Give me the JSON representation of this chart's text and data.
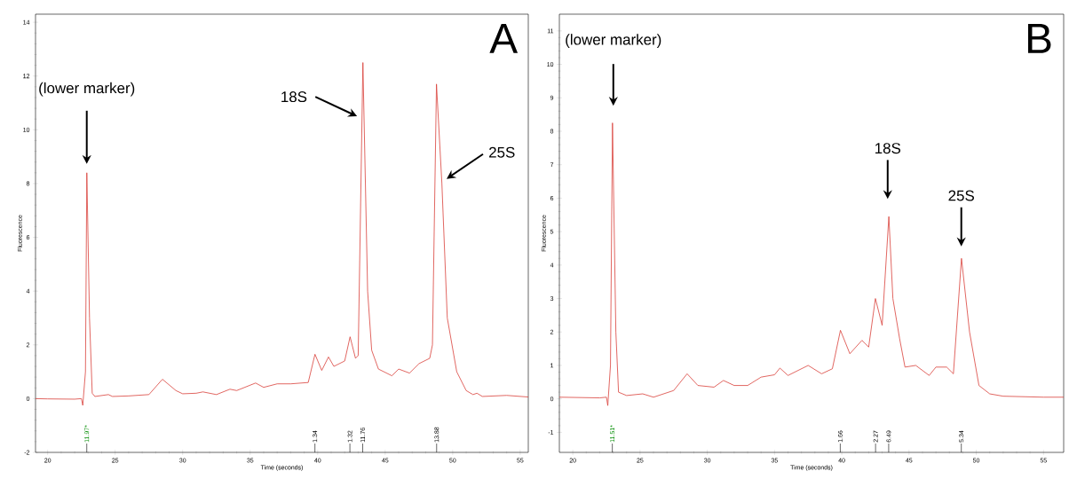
{
  "chart_data": [
    {
      "type": "line",
      "title": "A",
      "xlabel": "Time (seconds)",
      "ylabel": "Fluorescence",
      "color": "#d9403a",
      "x": [
        19.1,
        20,
        22,
        22.5,
        22.6,
        22.8,
        22.9,
        23.1,
        23.3,
        23.5,
        24.5,
        24.8,
        26,
        27.5,
        28.5,
        29.5,
        30,
        31,
        31.5,
        32.5,
        33.5,
        34,
        35.4,
        36,
        37,
        38,
        39.3,
        39.8,
        40.3,
        40.8,
        41.2,
        42,
        42.4,
        42.8,
        43.0,
        43.35,
        43.7,
        44.0,
        44.5,
        45.5,
        46,
        46.8,
        47.5,
        48.3,
        48.5,
        48.8,
        49.2,
        49.6,
        50.3,
        51,
        51.5,
        51.8,
        52.2,
        54,
        55.6
      ],
      "values": [
        0,
        -0.01,
        -0.02,
        0,
        -0.25,
        1.0,
        8.4,
        3.0,
        0.2,
        0.08,
        0.15,
        0.08,
        0.1,
        0.15,
        0.72,
        0.3,
        0.18,
        0.2,
        0.25,
        0.15,
        0.35,
        0.3,
        0.58,
        0.42,
        0.55,
        0.55,
        0.6,
        1.65,
        1.05,
        1.55,
        1.2,
        1.4,
        2.3,
        1.5,
        1.6,
        12.5,
        4,
        1.8,
        1.1,
        0.85,
        1.1,
        0.95,
        1.3,
        1.5,
        2,
        11.7,
        8,
        3,
        1.0,
        0.3,
        0.15,
        0.2,
        0.08,
        0.12,
        0.06
      ],
      "xlim": [
        19.1,
        55.6
      ],
      "ylim": [
        -2,
        14.3
      ],
      "xticks": [
        20,
        25,
        30,
        35,
        40,
        45,
        50,
        55
      ],
      "yticks": [
        -2,
        0,
        2,
        4,
        6,
        8,
        10,
        12,
        14
      ],
      "annotations": [
        "(lower marker)",
        "18S",
        "25S",
        "11.97*",
        "1.34",
        "1.32",
        "11.76",
        "13.88"
      ]
    },
    {
      "type": "line",
      "title": "B",
      "xlabel": "Time (seconds)",
      "ylabel": "Fluorescence",
      "color": "#d9403a",
      "x": [
        19,
        22,
        22.5,
        22.6,
        22.8,
        22.95,
        23.2,
        23.4,
        24,
        25.2,
        26,
        27.5,
        28.5,
        29.3,
        30.5,
        31.2,
        32,
        33,
        34,
        35,
        35.4,
        36,
        37.5,
        38.5,
        39.3,
        39.9,
        40.6,
        41.5,
        42,
        42.5,
        43.0,
        43.5,
        43.8,
        44.3,
        44.7,
        45.5,
        46.5,
        47,
        47.8,
        48.3,
        48.9,
        49.5,
        50.2,
        51,
        52,
        55,
        56.5
      ],
      "values": [
        0.05,
        0.03,
        0.05,
        -0.2,
        1,
        8.25,
        2,
        0.2,
        0.1,
        0.15,
        0.05,
        0.25,
        0.75,
        0.4,
        0.35,
        0.55,
        0.4,
        0.4,
        0.65,
        0.72,
        0.92,
        0.7,
        1.0,
        0.75,
        0.9,
        2.05,
        1.35,
        1.75,
        1.55,
        3.0,
        2.2,
        5.45,
        3,
        1.8,
        0.95,
        1.0,
        0.7,
        0.95,
        0.95,
        0.75,
        4.2,
        2,
        0.4,
        0.15,
        0.08,
        0.05,
        0.05
      ],
      "xlim": [
        19,
        56.5
      ],
      "ylim": [
        -1.6,
        11.5
      ],
      "xticks": [
        20,
        25,
        30,
        35,
        40,
        45,
        50,
        55
      ],
      "yticks": [
        -1,
        0,
        1,
        2,
        3,
        4,
        5,
        6,
        7,
        8,
        9,
        10,
        11
      ],
      "annotations": [
        "(lower marker)",
        "18S",
        "25S",
        "11.51*",
        "1.66",
        "2.27",
        "6.49",
        "5.34"
      ]
    }
  ]
}
